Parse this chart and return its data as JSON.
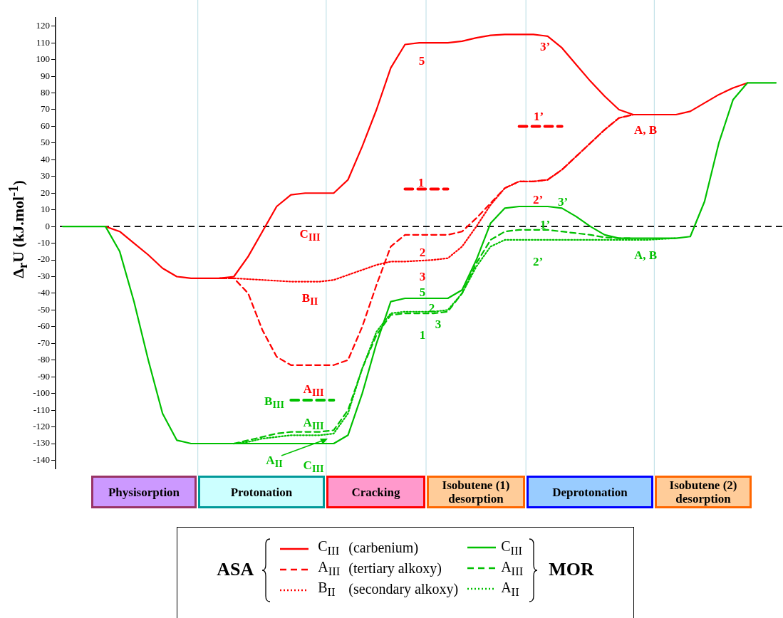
{
  "chart_data": {
    "type": "line",
    "ylabel": "Δ$_{r}$U (kJ.mol$^{-1}$)",
    "categories": [
      null,
      null,
      null,
      null,
      null,
      null,
      null,
      null,
      null,
      null,
      null,
      null,
      null,
      null,
      null,
      null,
      null,
      null,
      null,
      null,
      null,
      null,
      null,
      null,
      null,
      null,
      null,
      null,
      null,
      null,
      null,
      null,
      null,
      null,
      null,
      null,
      null,
      null,
      null,
      null,
      null,
      null,
      null,
      null,
      null,
      null,
      null,
      null,
      null,
      null,
      null
    ],
    "ylim": [
      -145,
      125
    ],
    "yticks": [
      -140,
      -130,
      -120,
      -110,
      -100,
      -90,
      -80,
      -70,
      -60,
      -50,
      -40,
      -30,
      -20,
      -10,
      0,
      10,
      20,
      30,
      40,
      50,
      60,
      70,
      80,
      90,
      100,
      110,
      120
    ],
    "tick_labels": "y",
    "grid": false,
    "marker": "none",
    "legend": "bottom",
    "series": [
      {
        "name": "C$_{III}$",
        "color": "#ff0000",
        "line_style": "solid",
        "values": [
          null,
          null,
          null,
          0,
          -3,
          -10,
          -17,
          -25,
          -30,
          -31,
          -31,
          -31,
          -30,
          -18,
          -3,
          12,
          19,
          20,
          20,
          20,
          28,
          48,
          70,
          95,
          109,
          110,
          110,
          110,
          111,
          113,
          114.5,
          115,
          115,
          115,
          114,
          107,
          97,
          87,
          78,
          70,
          67,
          67,
          67,
          67,
          69,
          74,
          79,
          83,
          86,
          null,
          null
        ]
      },
      {
        "name": "A$_{III}$",
        "color": "#ff0000",
        "line_style": "dashed",
        "values": [
          null,
          null,
          null,
          null,
          null,
          null,
          null,
          null,
          null,
          null,
          null,
          -31,
          -31,
          -40,
          -62,
          -78,
          -83,
          -83,
          -83,
          -83,
          -80,
          -60,
          -35,
          -12,
          -5,
          -5,
          -5,
          -5,
          -3,
          5,
          14,
          23,
          27,
          27,
          28,
          34,
          42,
          50,
          58,
          65,
          67,
          null,
          null,
          null,
          null,
          null,
          null,
          null,
          null,
          null,
          null
        ]
      },
      {
        "name": "B$_{II}$",
        "color": "#ff0000",
        "line_style": "dotted",
        "values": [
          null,
          null,
          null,
          null,
          null,
          null,
          null,
          null,
          null,
          null,
          null,
          -31,
          -31,
          -31.5,
          -32,
          -32.5,
          -33,
          -33,
          -33,
          -32,
          -29,
          -26,
          -23,
          -21,
          -21,
          -20.5,
          -20,
          -19,
          -12,
          0,
          13,
          23,
          27,
          27,
          28,
          34,
          42,
          50,
          58,
          65,
          67,
          null,
          null,
          null,
          null,
          null,
          null,
          null,
          null,
          null,
          null
        ]
      },
      {
        "name": "C$_{III}$",
        "color": "#00c000",
        "line_style": "solid",
        "values": [
          0,
          0,
          0,
          0,
          -15,
          -45,
          -80,
          -112,
          -128,
          -130,
          -130,
          -130,
          -130,
          -130,
          -130,
          -130,
          -130,
          -130,
          -130,
          -130,
          -125,
          -100,
          -70,
          -45,
          -43,
          -43,
          -43,
          -43,
          -38,
          -20,
          2,
          11,
          12,
          12,
          12,
          11,
          6,
          0,
          -5,
          -7,
          -7,
          -7,
          -7,
          -7,
          -6,
          15,
          50,
          76,
          86,
          86,
          86
        ]
      },
      {
        "name": "A$_{III}$",
        "color": "#00c000",
        "line_style": "dashed",
        "values": [
          null,
          null,
          null,
          null,
          null,
          null,
          null,
          null,
          null,
          null,
          null,
          null,
          -130,
          -128,
          -126,
          -124,
          -123,
          -123,
          -123,
          -122,
          -110,
          -85,
          -65,
          -53,
          -52,
          -52,
          -52,
          -51,
          -40,
          -22,
          -8,
          -3,
          -2,
          -2,
          -2,
          -3,
          -4,
          -5,
          -6.5,
          -7,
          -7,
          null,
          null,
          null,
          null,
          null,
          null,
          null,
          null,
          null,
          null
        ]
      },
      {
        "name": "A$_{II}$",
        "color": "#00c000",
        "line_style": "dotted",
        "values": [
          null,
          null,
          null,
          null,
          null,
          null,
          null,
          null,
          null,
          null,
          null,
          null,
          -130,
          -129,
          -127,
          -126,
          -125,
          -125,
          -125,
          -124,
          -112,
          -85,
          -63,
          -52,
          -51,
          -51,
          -51,
          -50,
          -40,
          -24,
          -12,
          -8,
          -8,
          -8,
          -8,
          -8,
          -8,
          -8,
          -8,
          -8,
          -8,
          -8,
          -7.5,
          -7,
          null,
          null,
          null,
          null,
          null,
          null,
          null
        ]
      },
      {
        "color": "#ff0000",
        "line_style": "dashed",
        "values": [
          null,
          null,
          null,
          null,
          null,
          null,
          null,
          null,
          null,
          null,
          null,
          null,
          null,
          null,
          null,
          null,
          null,
          null,
          null,
          null,
          null,
          null,
          null,
          null,
          22.5,
          22.5,
          22.5,
          22.5,
          null,
          null,
          null,
          null,
          null,
          null,
          null,
          null,
          null,
          null,
          null,
          null,
          null,
          null,
          null,
          null,
          null,
          null,
          null,
          null,
          null,
          null,
          null
        ]
      },
      {
        "color": "#ff0000",
        "line_style": "dashed",
        "values": [
          null,
          null,
          null,
          null,
          null,
          null,
          null,
          null,
          null,
          null,
          null,
          null,
          null,
          null,
          null,
          null,
          null,
          null,
          null,
          null,
          null,
          null,
          null,
          null,
          null,
          null,
          null,
          null,
          null,
          null,
          null,
          null,
          60,
          60,
          60,
          60,
          null,
          null,
          null,
          null,
          null,
          null,
          null,
          null,
          null,
          null,
          null,
          null,
          null,
          null,
          null
        ]
      },
      {
        "color": "#00c000",
        "line_style": "dashed",
        "values": [
          null,
          null,
          null,
          null,
          null,
          null,
          null,
          null,
          null,
          null,
          null,
          null,
          null,
          null,
          null,
          null,
          -104,
          -104,
          -104,
          -104,
          null,
          null,
          null,
          null,
          null,
          null,
          null,
          null,
          null,
          null,
          null,
          null,
          null,
          null,
          null,
          null,
          null,
          null,
          null,
          null,
          null,
          null,
          null,
          null,
          null,
          null,
          null,
          null,
          null,
          null,
          null
        ]
      }
    ],
    "ref_lines": [
      {
        "axis": "y",
        "value": 0,
        "color": "#000000",
        "line_style": "dashed"
      }
    ],
    "annotations": [
      "Physisorption",
      "Protonation",
      "Cracking",
      "Isobutene (1) desorption",
      "Deprotonation",
      "Isobutene (2) desorption",
      "ASA",
      "MOR",
      "(carbenium)",
      "(tertiary alkoxy)",
      "(secondary alkoxy)",
      "C$_{III}$",
      "B$_{II}$",
      "A$_{III}$",
      "B$_{III}$",
      "A$_{III}$",
      "A$_{II}$",
      "C$_{III}$",
      "5",
      "3’",
      "1’",
      "1",
      "2’",
      "2",
      "3",
      "5",
      "2",
      "3",
      "1",
      "3’",
      "1’",
      "2’",
      "A, B",
      "A, B"
    ]
  }
}
